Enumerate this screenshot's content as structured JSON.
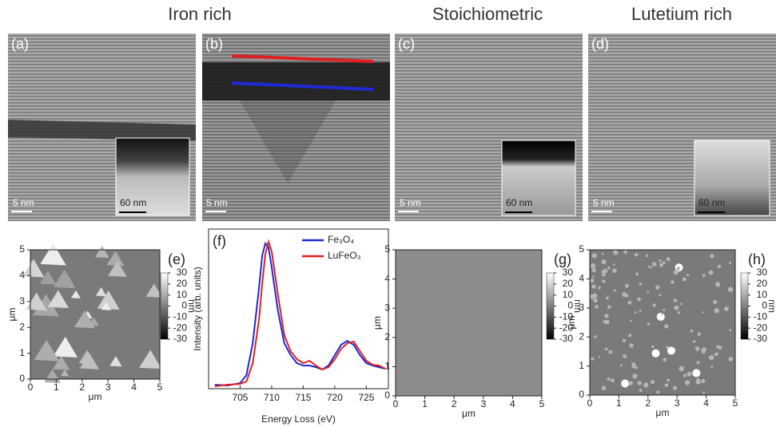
{
  "columns": [
    "Iron rich",
    "Stoichiometric",
    "Lutetium rich"
  ],
  "tem": {
    "a": {
      "label": "(a)",
      "scale": "5 nm",
      "inset_scale": "60 nm"
    },
    "b": {
      "label": "(b)",
      "scale": "5 nm"
    },
    "c": {
      "label": "(c)",
      "scale": "5 nm",
      "inset_scale": "60 nm"
    },
    "d": {
      "label": "(d)",
      "scale": "5 nm",
      "inset_scale": "60 nm"
    }
  },
  "afm": {
    "e": {
      "label": "(e)",
      "xlabel": "μm",
      "ylabel": "μm",
      "xlim": [
        0,
        5
      ],
      "ylim": [
        0,
        5
      ],
      "xticks": [
        0,
        1,
        2,
        3,
        4,
        5
      ],
      "yticks": [
        0,
        1,
        2,
        3,
        4,
        5
      ],
      "colorbar": {
        "lim": [
          -30,
          30
        ],
        "ticks": [
          30,
          20,
          10,
          0,
          -10,
          -20,
          -30
        ],
        "label": "nm"
      }
    },
    "g": {
      "label": "(g)",
      "xlabel": "μm",
      "ylabel": "μm",
      "xlim": [
        0,
        5
      ],
      "ylim": [
        0,
        5
      ],
      "xticks": [
        0,
        1,
        2,
        3,
        4,
        5
      ],
      "yticks": [
        0,
        1,
        2,
        3,
        4,
        5
      ],
      "colorbar": {
        "lim": [
          -30,
          30
        ],
        "ticks": [
          30,
          20,
          10,
          0,
          -10,
          -20,
          -30
        ],
        "label": "nm"
      }
    },
    "h": {
      "label": "(h)",
      "xlabel": "μm",
      "ylabel": "μm",
      "xlim": [
        0,
        5
      ],
      "ylim": [
        0,
        5
      ],
      "xticks": [
        0,
        1,
        2,
        3,
        4,
        5
      ],
      "yticks": [
        0,
        1,
        2,
        3,
        4,
        5
      ],
      "colorbar": {
        "lim": [
          -30,
          30
        ],
        "ticks": [
          30,
          20,
          10,
          0,
          -10,
          -20,
          -30
        ],
        "label": "nm"
      }
    }
  },
  "chart_data": {
    "type": "line",
    "label": "(f)",
    "xlabel": "Energy Loss (eV)",
    "ylabel": "Intensity (arb. units)",
    "xlim": [
      700,
      728.5
    ],
    "xticks": [
      705,
      710,
      715,
      720,
      725
    ],
    "ylim": [
      0,
      1
    ],
    "x": [
      701,
      703,
      705,
      706,
      707,
      708,
      708.5,
      709,
      709.5,
      710,
      711,
      712,
      713,
      714,
      715,
      716,
      717,
      718,
      719,
      720,
      721,
      722,
      723,
      724,
      725,
      726,
      727,
      728
    ],
    "series": [
      {
        "name": "Fe₃O₄",
        "color": "#1f2ad6",
        "values": [
          0.025,
          0.02,
          0.035,
          0.085,
          0.285,
          0.635,
          0.835,
          0.91,
          0.885,
          0.76,
          0.485,
          0.285,
          0.21,
          0.16,
          0.145,
          0.145,
          0.135,
          0.12,
          0.145,
          0.21,
          0.275,
          0.3,
          0.275,
          0.21,
          0.16,
          0.145,
          0.135,
          0.125
        ]
      },
      {
        "name": "LuFeO₃",
        "color": "#e02020",
        "values": [
          0.015,
          0.025,
          0.03,
          0.045,
          0.16,
          0.435,
          0.66,
          0.845,
          0.92,
          0.86,
          0.585,
          0.335,
          0.235,
          0.185,
          0.16,
          0.175,
          0.145,
          0.12,
          0.135,
          0.185,
          0.25,
          0.285,
          0.295,
          0.235,
          0.175,
          0.15,
          0.145,
          0.125
        ]
      }
    ]
  }
}
